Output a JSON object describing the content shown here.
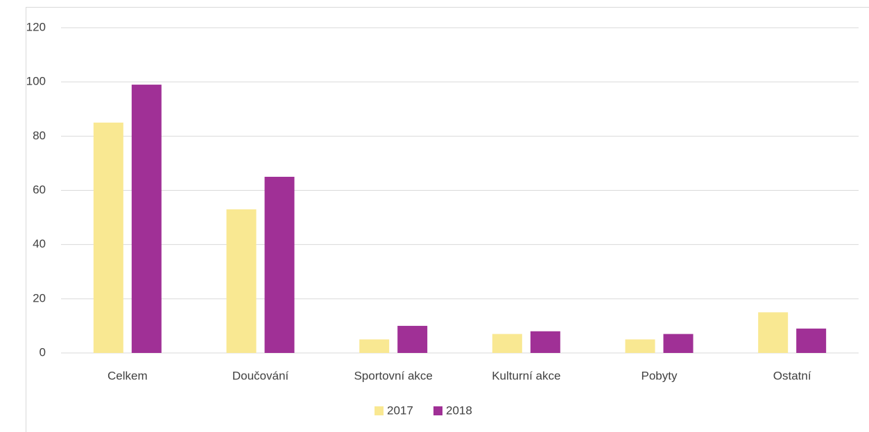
{
  "chart_data": {
    "type": "bar",
    "categories": [
      "Celkem",
      "Doučování",
      "Sportovní akce",
      "Kulturní akce",
      "Pobyty",
      "Ostatní"
    ],
    "series": [
      {
        "name": "2017",
        "color": "#f9e892",
        "values": [
          85,
          53,
          5,
          7,
          5,
          15
        ]
      },
      {
        "name": "2018",
        "color": "#a03096",
        "values": [
          99,
          65,
          10,
          8,
          7,
          9
        ]
      }
    ],
    "ylim": [
      0,
      120
    ],
    "yticks": [
      0,
      20,
      40,
      60,
      80,
      100,
      120
    ],
    "grid": true,
    "legend": "bottom"
  }
}
